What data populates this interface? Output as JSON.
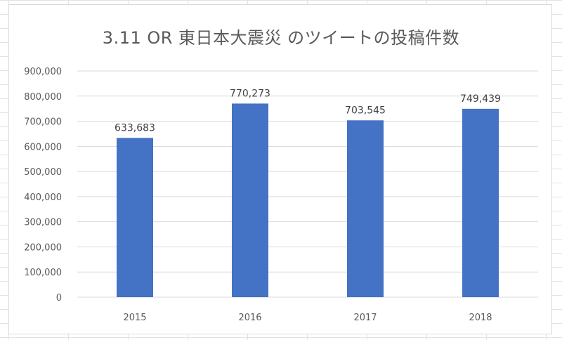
{
  "chart_data": {
    "type": "bar",
    "title": "3.11 OR 東日本大震災 のツイートの投稿件数",
    "categories": [
      "2015",
      "2016",
      "2017",
      "2018"
    ],
    "values": [
      633683,
      770273,
      703545,
      749439
    ],
    "data_labels": [
      "633,683",
      "770,273",
      "703,545",
      "749,439"
    ],
    "y_ticks": [
      "0",
      "100,000",
      "200,000",
      "300,000",
      "400,000",
      "500,000",
      "600,000",
      "700,000",
      "800,000",
      "900,000"
    ],
    "ylim": [
      0,
      900000
    ],
    "y_step": 100000,
    "xlabel": "",
    "ylabel": "",
    "grid": true,
    "legend": "none",
    "bar_color": "#4472C4",
    "grid_color": "#d9d9d9"
  }
}
